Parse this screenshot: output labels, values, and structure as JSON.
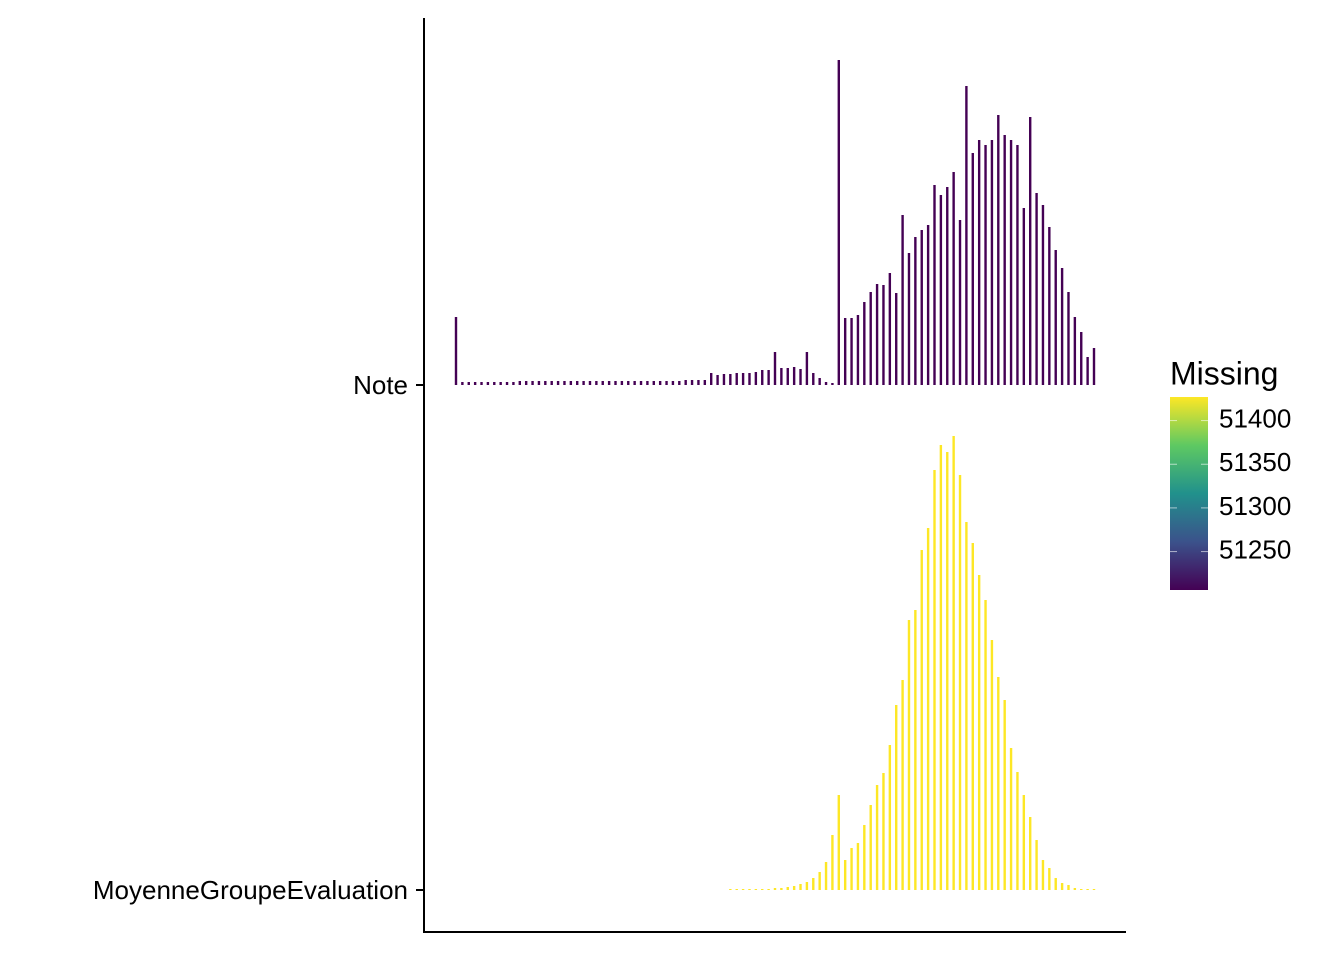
{
  "chart_data": {
    "type": "ridgeline",
    "series": [
      {
        "name": "Note",
        "missing": 51206,
        "values": [
          68,
          3,
          3,
          3,
          3,
          3,
          3,
          3,
          3,
          3,
          4,
          4,
          4,
          4,
          4,
          4,
          4,
          4,
          4,
          4,
          4,
          4,
          4,
          4,
          4,
          4,
          4,
          4,
          4,
          4,
          4,
          4,
          4,
          4,
          4,
          4,
          5,
          5,
          5,
          5,
          12,
          10,
          11,
          11,
          12,
          12,
          12,
          13,
          15,
          15,
          33,
          17,
          17,
          18,
          16,
          33,
          12,
          7,
          3,
          2,
          325,
          67,
          67,
          70,
          83,
          93,
          101,
          100,
          112,
          92,
          170,
          132,
          148,
          155,
          160,
          200,
          190,
          198,
          213,
          165,
          299,
          232,
          245,
          240,
          245,
          270,
          250,
          245,
          240,
          177,
          268,
          192,
          180,
          158,
          135,
          117,
          93,
          68,
          53,
          28,
          37
        ]
      },
      {
        "name": "MoyenneGroupeEvaluation",
        "missing": 51427,
        "values": [
          null,
          null,
          null,
          null,
          null,
          null,
          null,
          null,
          null,
          null,
          null,
          null,
          null,
          null,
          null,
          null,
          null,
          null,
          null,
          null,
          null,
          null,
          null,
          null,
          null,
          null,
          null,
          null,
          null,
          null,
          null,
          null,
          null,
          null,
          null,
          null,
          null,
          null,
          null,
          null,
          null,
          null,
          null,
          1,
          1,
          1,
          1,
          1,
          1,
          1,
          2,
          2,
          3,
          4,
          6,
          8,
          12,
          18,
          28,
          55,
          95,
          30,
          42,
          47,
          65,
          85,
          105,
          117,
          145,
          185,
          210,
          270,
          280,
          340,
          362,
          420,
          445,
          438,
          454,
          415,
          368,
          347,
          315,
          290,
          250,
          213,
          190,
          142,
          118,
          95,
          73,
          50,
          30,
          22,
          12,
          7,
          5,
          2,
          1,
          1,
          1
        ]
      }
    ],
    "legend": {
      "title": "Missing",
      "clim": [
        51206,
        51427
      ],
      "ticks": [
        51250,
        51300,
        51350,
        51400
      ]
    }
  }
}
